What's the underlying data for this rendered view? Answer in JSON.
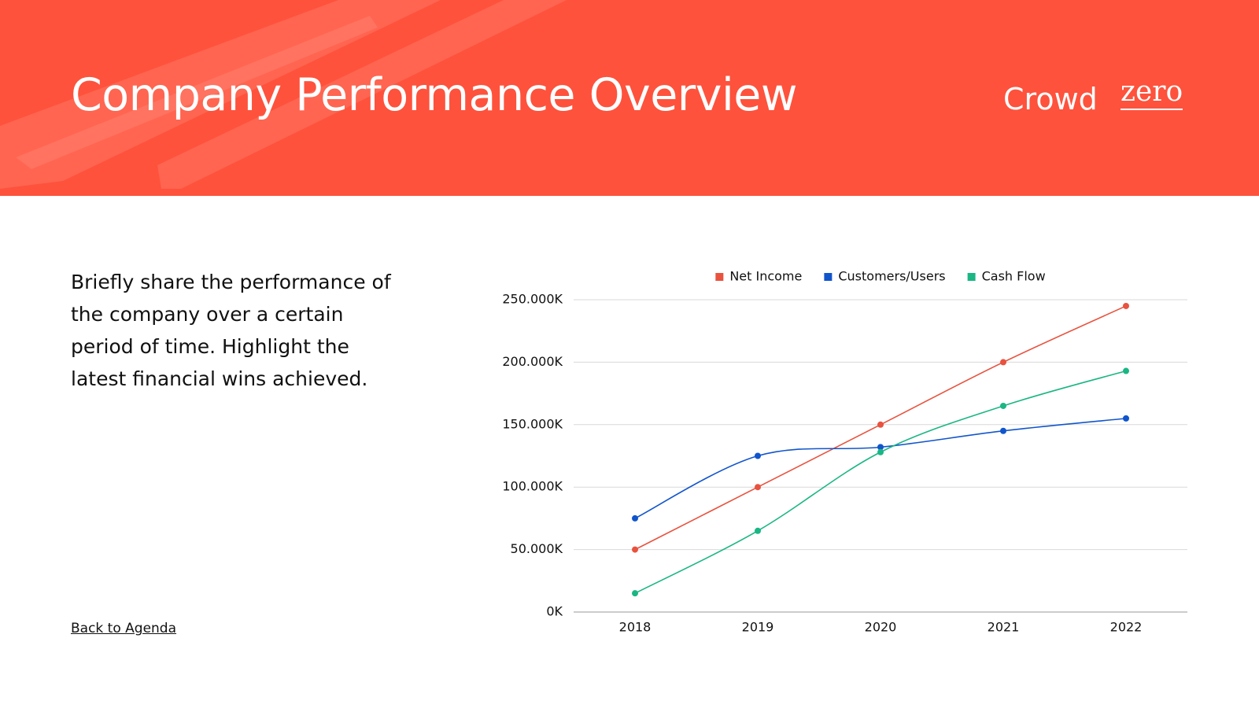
{
  "header": {
    "title": "Company Performance Overview",
    "logo": [
      "Crowd",
      "zero"
    ]
  },
  "body": {
    "text": "Briefly share the performance of the company over a certain period of time. Highlight the latest financial wins achieved.",
    "link": "Back to Agenda"
  },
  "chart_data": {
    "type": "line",
    "categories": [
      "2018",
      "2019",
      "2020",
      "2021",
      "2022"
    ],
    "series": [
      {
        "name": "Net Income",
        "color": "#e8523e",
        "values": [
          50000,
          100000,
          150000,
          200000,
          245000
        ]
      },
      {
        "name": "Customers/Users",
        "color": "#1155cc",
        "values": [
          75000,
          125000,
          132000,
          145000,
          155000
        ]
      },
      {
        "name": "Cash Flow",
        "color": "#1ab684",
        "values": [
          15000,
          65000,
          128000,
          165000,
          193000
        ]
      }
    ],
    "ylim": [
      0,
      250000
    ],
    "yticks": [
      {
        "value": 0,
        "label": "0K"
      },
      {
        "value": 50000,
        "label": "50.000K"
      },
      {
        "value": 100000,
        "label": "100.000K"
      },
      {
        "value": 150000,
        "label": "150.000K"
      },
      {
        "value": 200000,
        "label": "200.000K"
      },
      {
        "value": 250000,
        "label": "250.000K"
      }
    ],
    "grid": true,
    "legend": "top",
    "smooth": true
  }
}
